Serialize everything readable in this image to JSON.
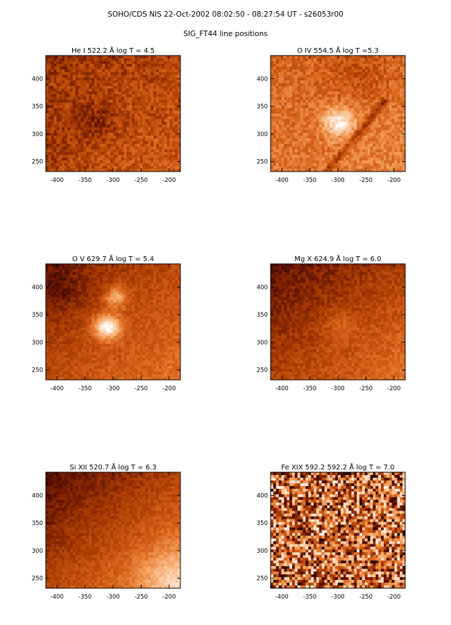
{
  "figure": {
    "title": "SOHO/CDS NIS  22-Oct-2002 08:02:50 - 08:27:54 UT - s26053r00",
    "subtitle": "SIG_FT44 line positions"
  },
  "colors": {
    "background": "#ffffff",
    "colormap": [
      "#000000",
      "#5a0f00",
      "#a83a00",
      "#d8641c",
      "#f29a55",
      "#fcd2ae",
      "#ffffff"
    ]
  },
  "chart_data": [
    {
      "type": "heatmap",
      "title": "He I  522.2 Å log T = 4.5",
      "xlim": [
        -420,
        -180
      ],
      "ylim": [
        232,
        442
      ],
      "xticks": [
        -400,
        -350,
        -300,
        -250,
        -200
      ],
      "yticks": [
        250,
        300,
        350,
        400
      ],
      "colormap": "red-temperature",
      "seed": 11,
      "noise": 0.22,
      "base": 0.38,
      "grad": 0.08,
      "features": [
        {
          "x": -415,
          "y": 280,
          "r": 30,
          "a": -0.05
        },
        {
          "x": -330,
          "y": 322,
          "r": 25,
          "a": -0.12
        }
      ]
    },
    {
      "type": "heatmap",
      "title": "O IV  554.5 Å log T =5.3",
      "xlim": [
        -420,
        -180
      ],
      "ylim": [
        232,
        442
      ],
      "xticks": [
        -400,
        -350,
        -300,
        -250,
        -200
      ],
      "yticks": [
        250,
        300,
        350,
        400
      ],
      "colormap": "red-temperature",
      "seed": 23,
      "noise": 0.2,
      "base": 0.55,
      "grad": 0.05,
      "features": [
        {
          "x": -298,
          "y": 322,
          "r": 20,
          "a": 0.4
        },
        {
          "x": -260,
          "y": 410,
          "r": 45,
          "a": -0.12
        }
      ],
      "streak": {
        "x1": -320,
        "y1": 232,
        "x2": -215,
        "y2": 360,
        "w": 10,
        "a": -0.25
      }
    },
    {
      "type": "heatmap",
      "title": "O V  629.7 Å log T = 5.4",
      "xlim": [
        -420,
        -180
      ],
      "ylim": [
        232,
        442
      ],
      "xticks": [
        -400,
        -350,
        -300,
        -250,
        -200
      ],
      "yticks": [
        250,
        300,
        350,
        400
      ],
      "colormap": "red-temperature",
      "seed": 37,
      "noise": 0.13,
      "base": 0.4,
      "grad": 0.15,
      "features": [
        {
          "x": -310,
          "y": 328,
          "r": 17,
          "a": 0.6
        },
        {
          "x": -295,
          "y": 382,
          "r": 14,
          "a": 0.35
        },
        {
          "x": -400,
          "y": 400,
          "r": 40,
          "a": -0.12
        }
      ]
    },
    {
      "type": "heatmap",
      "title": "Mg X  624.9 Å log T = 6.0",
      "xlim": [
        -420,
        -180
      ],
      "ylim": [
        232,
        442
      ],
      "xticks": [
        -400,
        -350,
        -300,
        -250,
        -200
      ],
      "yticks": [
        250,
        300,
        350,
        400
      ],
      "colormap": "red-temperature",
      "seed": 53,
      "noise": 0.14,
      "base": 0.36,
      "grad": 0.2,
      "features": [
        {
          "x": -300,
          "y": 330,
          "r": 20,
          "a": 0.12
        }
      ]
    },
    {
      "type": "heatmap",
      "title": "Si XII  520.7 Å log T = 6.3",
      "xlim": [
        -420,
        -180
      ],
      "ylim": [
        232,
        442
      ],
      "xticks": [
        -400,
        -350,
        -300,
        -250,
        -200
      ],
      "yticks": [
        250,
        300,
        350,
        400
      ],
      "colormap": "red-temperature",
      "seed": 71,
      "noise": 0.12,
      "base": 0.38,
      "grad": 0.24,
      "features": [
        {
          "x": -190,
          "y": 250,
          "r": 45,
          "a": 0.25
        }
      ]
    },
    {
      "type": "heatmap",
      "title": "Fe XIX 592.2  592.2 Å log T = 7.0",
      "xlim": [
        -420,
        -180
      ],
      "ylim": [
        232,
        442
      ],
      "xticks": [
        -400,
        -350,
        -300,
        -250,
        -200
      ],
      "yticks": [
        250,
        300,
        350,
        400
      ],
      "colormap": "red-temperature",
      "seed": 97,
      "noise": 0.9,
      "base": 0.5,
      "grad": 0.0,
      "features": []
    }
  ]
}
